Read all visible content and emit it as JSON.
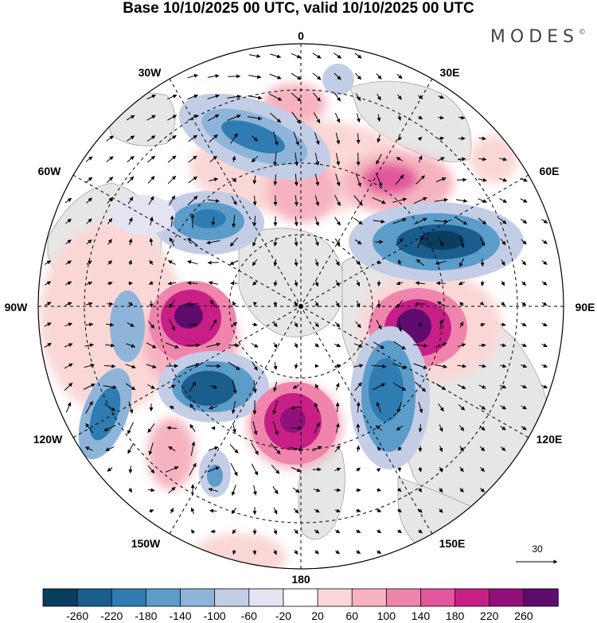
{
  "title": "Base 10/10/2025 00 UTC, valid 10/10/2025 00 UTC",
  "brand": "MODES",
  "brand_mark": "©",
  "longitude_labels": {
    "top": "0",
    "top_right": "30E",
    "right_upper": "60E",
    "right": "90E",
    "right_lower": "120E",
    "bottom_right": "150E",
    "bottom": "180",
    "bottom_left": "150W",
    "left_lower": "120W",
    "left": "90W",
    "left_upper": "60W",
    "top_left": "30W"
  },
  "reference_vector": {
    "value": "30"
  },
  "colorbar": {
    "ticks": [
      "-260",
      "-220",
      "-180",
      "-140",
      "-100",
      "-60",
      "-20",
      "20",
      "60",
      "100",
      "140",
      "180",
      "220",
      "260"
    ],
    "colors": [
      "#0b3d5e",
      "#1a5e8e",
      "#2f7cb3",
      "#5b9cc9",
      "#8eb4d9",
      "#c3cde6",
      "#e3e3f2",
      "#ffffff",
      "#fad7d6",
      "#f6b3bf",
      "#ef85ad",
      "#e2569b",
      "#c81f87",
      "#92107a",
      "#5e0c6e"
    ]
  },
  "map": {
    "anomaly_blobs": [
      {
        "name": "blue-anomaly-north-atlantic",
        "color": "#2f7cb3"
      },
      {
        "name": "blue-anomaly-west-siberia",
        "color": "#1a5e8e"
      },
      {
        "name": "magenta-anomaly-east-asia",
        "color": "#92107a"
      },
      {
        "name": "blue-anomaly-east-pacific",
        "color": "#2f7cb3"
      },
      {
        "name": "magenta-anomaly-north-pacific",
        "color": "#c81f87"
      },
      {
        "name": "blue-anomaly-north-america",
        "color": "#1a5e8e"
      },
      {
        "name": "magenta-anomaly-canada",
        "color": "#92107a"
      },
      {
        "name": "blue-anomaly-gulf",
        "color": "#5b9cc9"
      }
    ]
  }
}
